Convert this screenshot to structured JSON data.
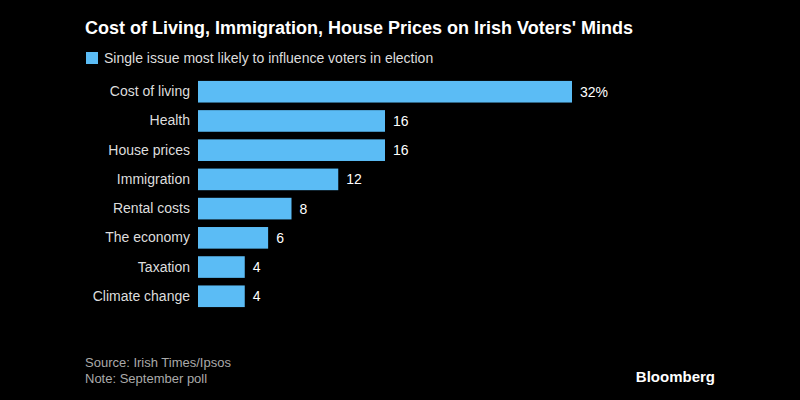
{
  "chart_data": {
    "type": "bar",
    "orientation": "horizontal",
    "title": "Cost of Living, Immigration, House Prices on Irish Voters' Minds",
    "categories": [
      "Cost of living",
      "Health",
      "House prices",
      "Immigration",
      "Rental costs",
      "The economy",
      "Taxation",
      "Climate change"
    ],
    "series": [
      {
        "name": "Single issue most likely to influence voters in election",
        "color": "#5bbcf5",
        "values": [
          32,
          16,
          16,
          12,
          8,
          6,
          4,
          4
        ],
        "value_labels": [
          "32%",
          "16",
          "16",
          "12",
          "8",
          "6",
          "4",
          "4"
        ]
      }
    ],
    "xlim": [
      0,
      32
    ],
    "tick_labels": "y",
    "data_labels": true,
    "grid": false,
    "legend": "top-left",
    "source": "Source: Irish Times/Ipsos",
    "note": "Note: September poll",
    "credit": "Bloomberg"
  }
}
